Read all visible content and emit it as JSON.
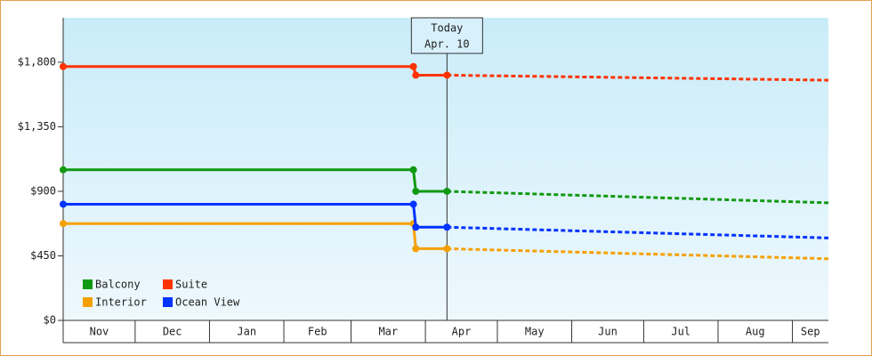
{
  "chart_data": {
    "type": "line",
    "xlim": [
      0,
      319
    ],
    "xticks": [
      {
        "value": 0,
        "label": "Nov"
      },
      {
        "value": 30,
        "label": "Dec"
      },
      {
        "value": 61,
        "label": "Jan"
      },
      {
        "value": 92,
        "label": "Feb"
      },
      {
        "value": 120,
        "label": "Mar"
      },
      {
        "value": 151,
        "label": "Apr"
      },
      {
        "value": 181,
        "label": "May"
      },
      {
        "value": 212,
        "label": "Jun"
      },
      {
        "value": 242,
        "label": "Jul"
      },
      {
        "value": 273,
        "label": "Aug"
      },
      {
        "value": 304,
        "label": "Sep"
      }
    ],
    "ylim": [
      0,
      2110
    ],
    "yticks": [
      {
        "value": 0,
        "label": "$0"
      },
      {
        "value": 450,
        "label": "$450"
      },
      {
        "value": 900,
        "label": "$900"
      },
      {
        "value": 1350,
        "label": "$1,350"
      },
      {
        "value": 1800,
        "label": "$1,800"
      }
    ],
    "today": {
      "x": 160,
      "label": "Today",
      "date": "Apr. 10"
    },
    "x": [
      0,
      146,
      147,
      160,
      319
    ],
    "series": [
      {
        "name": "Balcony",
        "color": "#119911",
        "values": [
          1050,
          1050,
          900,
          900,
          820
        ]
      },
      {
        "name": "Suite",
        "color": "#ff3300",
        "values": [
          1770,
          1770,
          1710,
          1710,
          1675
        ]
      },
      {
        "name": "Interior",
        "color": "#f5a000",
        "values": [
          675,
          675,
          500,
          500,
          430
        ]
      },
      {
        "name": "Ocean View",
        "color": "#0033ff",
        "values": [
          810,
          810,
          650,
          650,
          575
        ]
      }
    ]
  }
}
